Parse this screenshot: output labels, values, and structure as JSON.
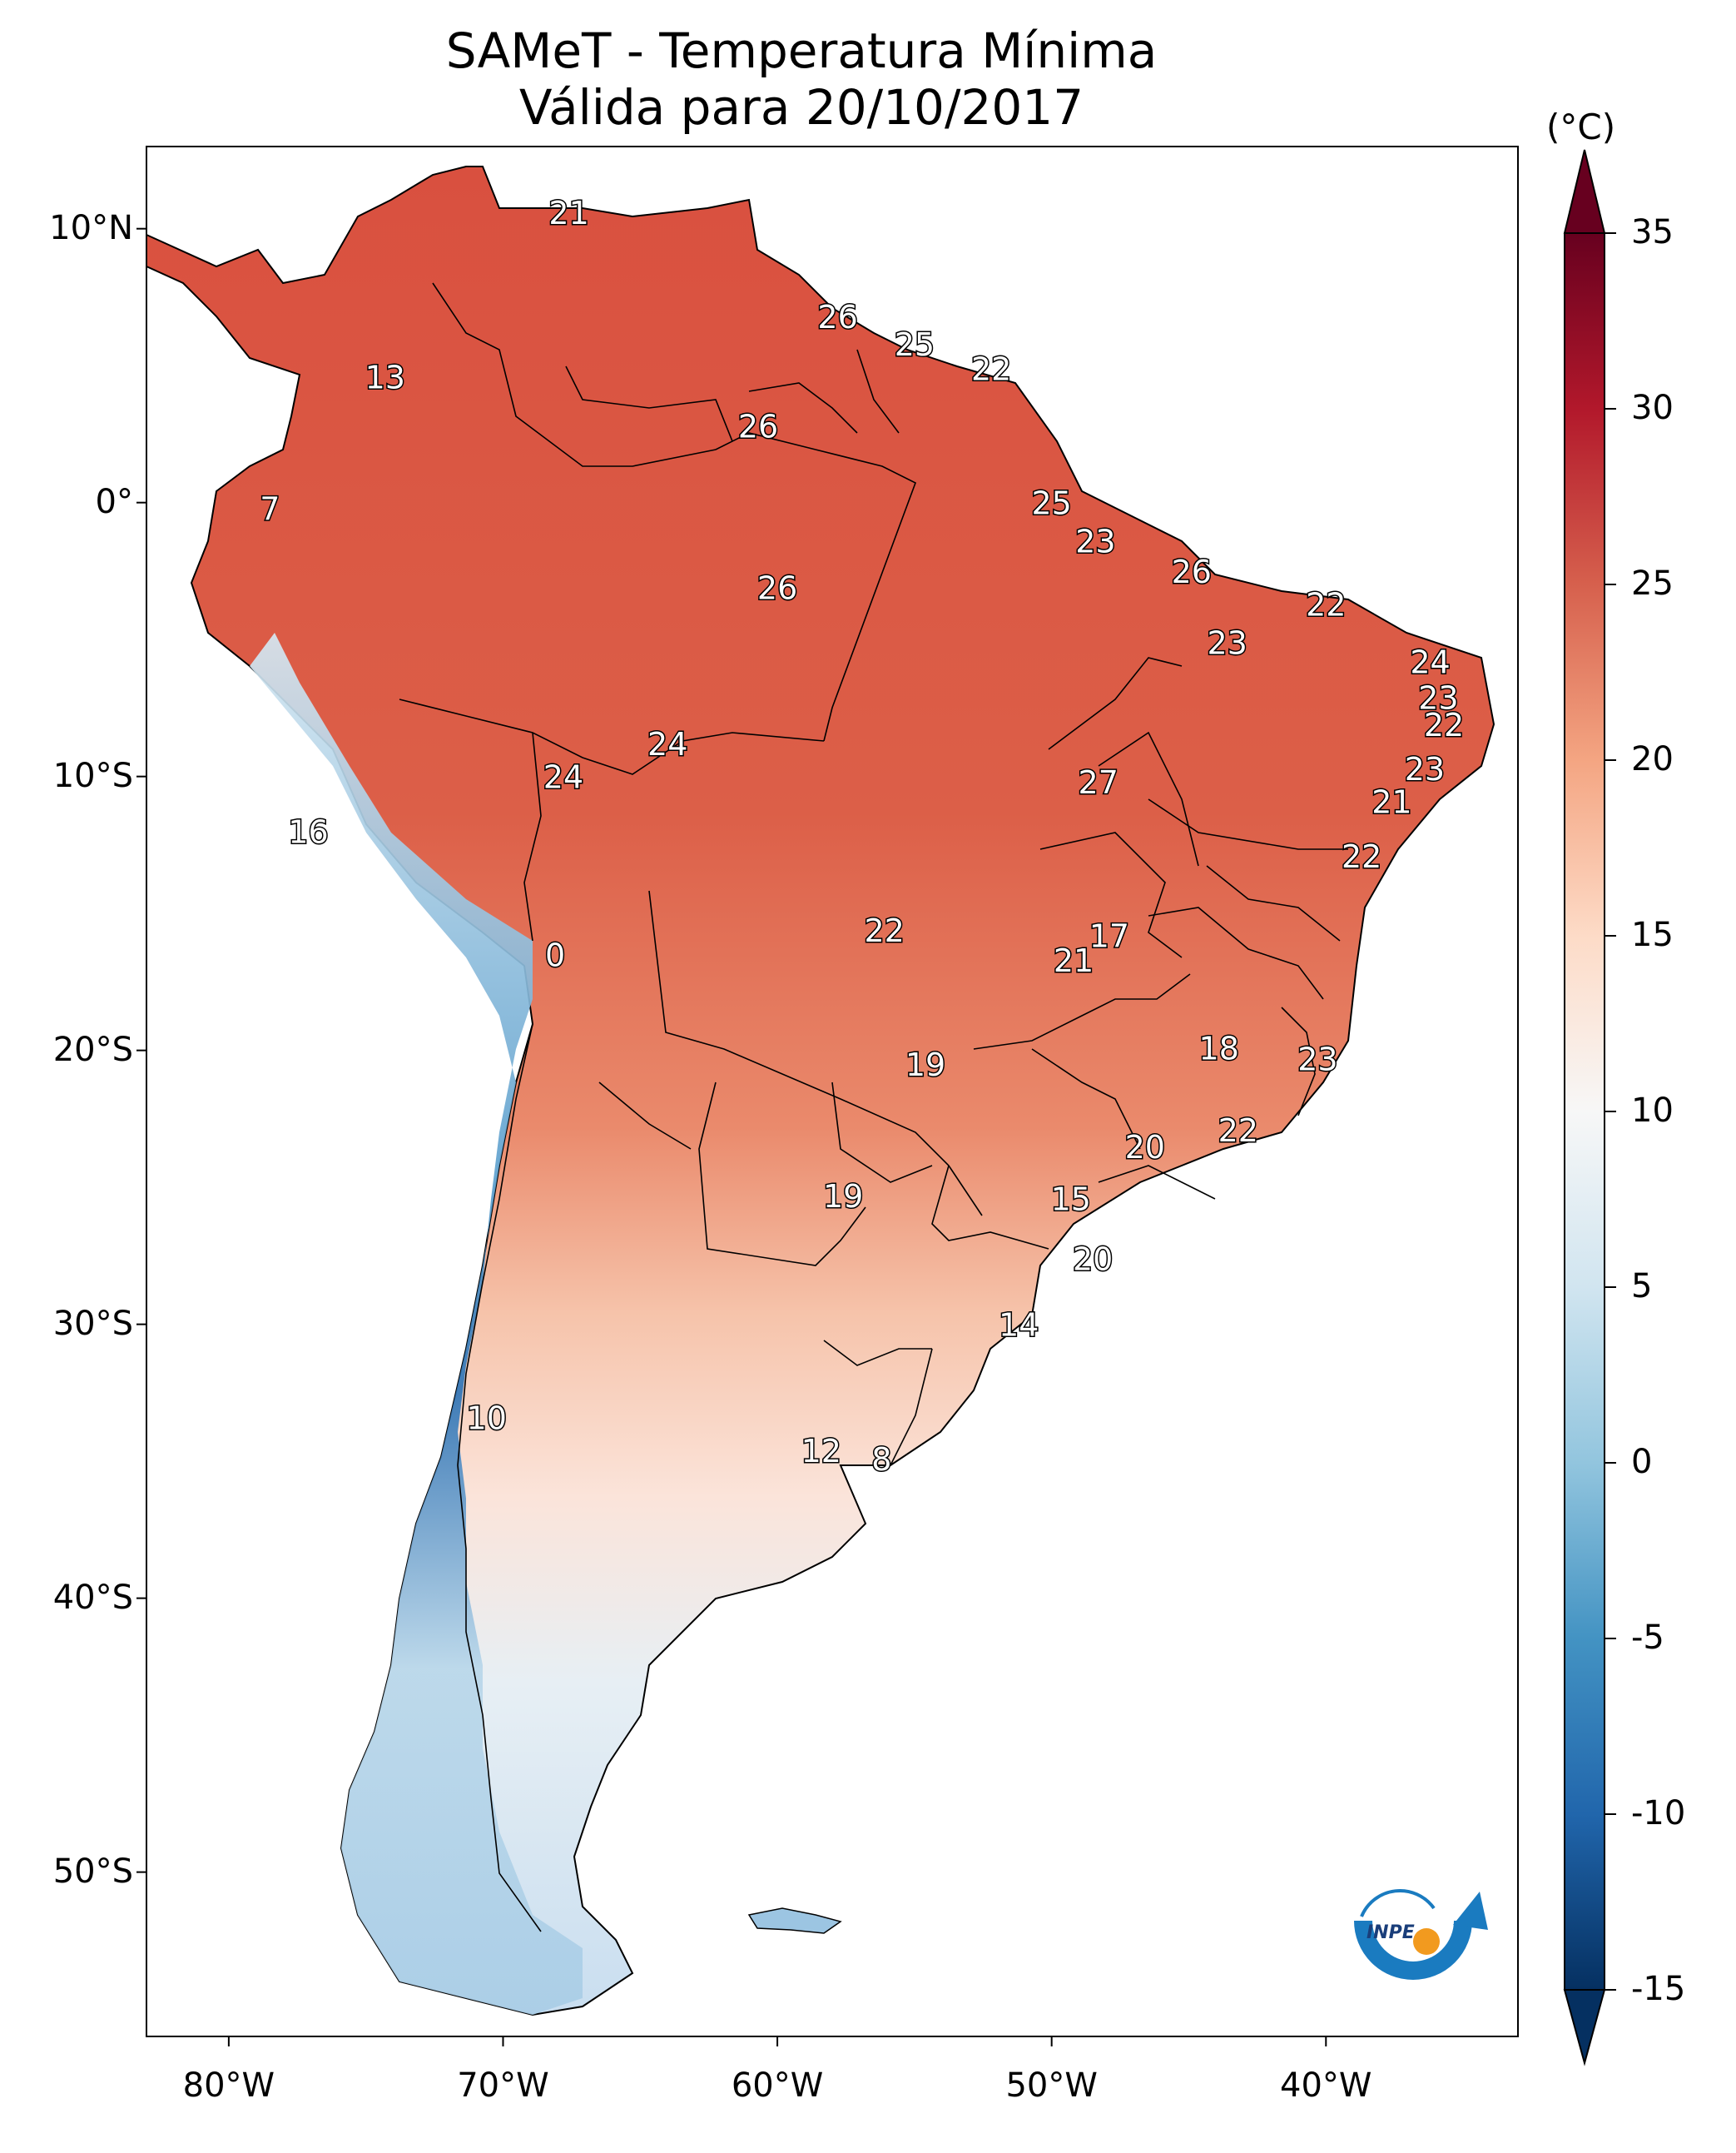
{
  "title": {
    "line1": "SAMeT - Temperatura Mínima",
    "line2": "Válida para 20/10/2017"
  },
  "map": {
    "lat_labels": [
      "10°N",
      "0°",
      "10°S",
      "20°S",
      "30°S",
      "40°S",
      "50°S"
    ],
    "lon_labels": [
      "80°W",
      "70°W",
      "60°W",
      "50°W",
      "40°W"
    ],
    "lon_range": [
      -83,
      -33
    ],
    "lat_range": [
      -56,
      13
    ],
    "station_values": [
      {
        "label": "21",
        "lon": -67.6,
        "lat": 10.6
      },
      {
        "label": "13",
        "lon": -74.3,
        "lat": 4.6
      },
      {
        "label": "7",
        "lon": -78.5,
        "lat": -0.2
      },
      {
        "label": "26",
        "lon": -57.8,
        "lat": 6.8
      },
      {
        "label": "25",
        "lon": -55.0,
        "lat": 5.8
      },
      {
        "label": "22",
        "lon": -52.2,
        "lat": 4.9
      },
      {
        "label": "26",
        "lon": -60.7,
        "lat": 2.8
      },
      {
        "label": "25",
        "lon": -50.0,
        "lat": 0.0
      },
      {
        "label": "23",
        "lon": -48.4,
        "lat": -1.4
      },
      {
        "label": "26",
        "lon": -44.9,
        "lat": -2.5
      },
      {
        "label": "22",
        "lon": -40.0,
        "lat": -3.7
      },
      {
        "label": "26",
        "lon": -60.0,
        "lat": -3.1
      },
      {
        "label": "23",
        "lon": -43.6,
        "lat": -5.1
      },
      {
        "label": "24",
        "lon": -36.2,
        "lat": -5.8
      },
      {
        "label": "23",
        "lon": -35.9,
        "lat": -7.1
      },
      {
        "label": "22",
        "lon": -35.7,
        "lat": -8.1
      },
      {
        "label": "23",
        "lon": -36.4,
        "lat": -9.7
      },
      {
        "label": "21",
        "lon": -37.6,
        "lat": -10.9
      },
      {
        "label": "22",
        "lon": -38.7,
        "lat": -12.9
      },
      {
        "label": "24",
        "lon": -64.0,
        "lat": -8.8
      },
      {
        "label": "24",
        "lon": -67.8,
        "lat": -10.0
      },
      {
        "label": "27",
        "lon": -48.3,
        "lat": -10.2
      },
      {
        "label": "16",
        "lon": -77.1,
        "lat": -12.0
      },
      {
        "label": "22",
        "lon": -56.1,
        "lat": -15.6
      },
      {
        "label": "17",
        "lon": -47.9,
        "lat": -15.8
      },
      {
        "label": "21",
        "lon": -49.2,
        "lat": -16.7
      },
      {
        "label": "0",
        "lon": -68.1,
        "lat": -16.5
      },
      {
        "label": "19",
        "lon": -54.6,
        "lat": -20.5
      },
      {
        "label": "18",
        "lon": -43.9,
        "lat": -19.9
      },
      {
        "label": "23",
        "lon": -40.3,
        "lat": -20.3
      },
      {
        "label": "20",
        "lon": -46.6,
        "lat": -23.5
      },
      {
        "label": "22",
        "lon": -43.2,
        "lat": -22.9
      },
      {
        "label": "19",
        "lon": -57.6,
        "lat": -25.3
      },
      {
        "label": "15",
        "lon": -49.3,
        "lat": -25.4
      },
      {
        "label": "20",
        "lon": -48.5,
        "lat": -27.6
      },
      {
        "label": "14",
        "lon": -51.2,
        "lat": -30.0
      },
      {
        "label": "10",
        "lon": -70.6,
        "lat": -33.4
      },
      {
        "label": "12",
        "lon": -58.4,
        "lat": -34.6
      },
      {
        "label": "8",
        "lon": -56.2,
        "lat": -34.9
      }
    ]
  },
  "colorbar": {
    "unit": "(°C)",
    "ticks": [
      "35",
      "30",
      "25",
      "20",
      "15",
      "10",
      "5",
      "0",
      "-5",
      "-10",
      "-15"
    ],
    "tick_values": [
      35,
      30,
      25,
      20,
      15,
      10,
      5,
      0,
      -5,
      -10,
      -15
    ],
    "range": [
      -15,
      35
    ],
    "colors": [
      "#053061",
      "#2166ac",
      "#4393c3",
      "#92c5de",
      "#d1e5f0",
      "#f7f7f7",
      "#fddbc7",
      "#f4a582",
      "#d6604d",
      "#b2182b",
      "#67001f"
    ]
  },
  "logo": {
    "text": "INPE",
    "colors": {
      "arc": "#1a7bc0",
      "dot": "#f29a1f"
    }
  }
}
